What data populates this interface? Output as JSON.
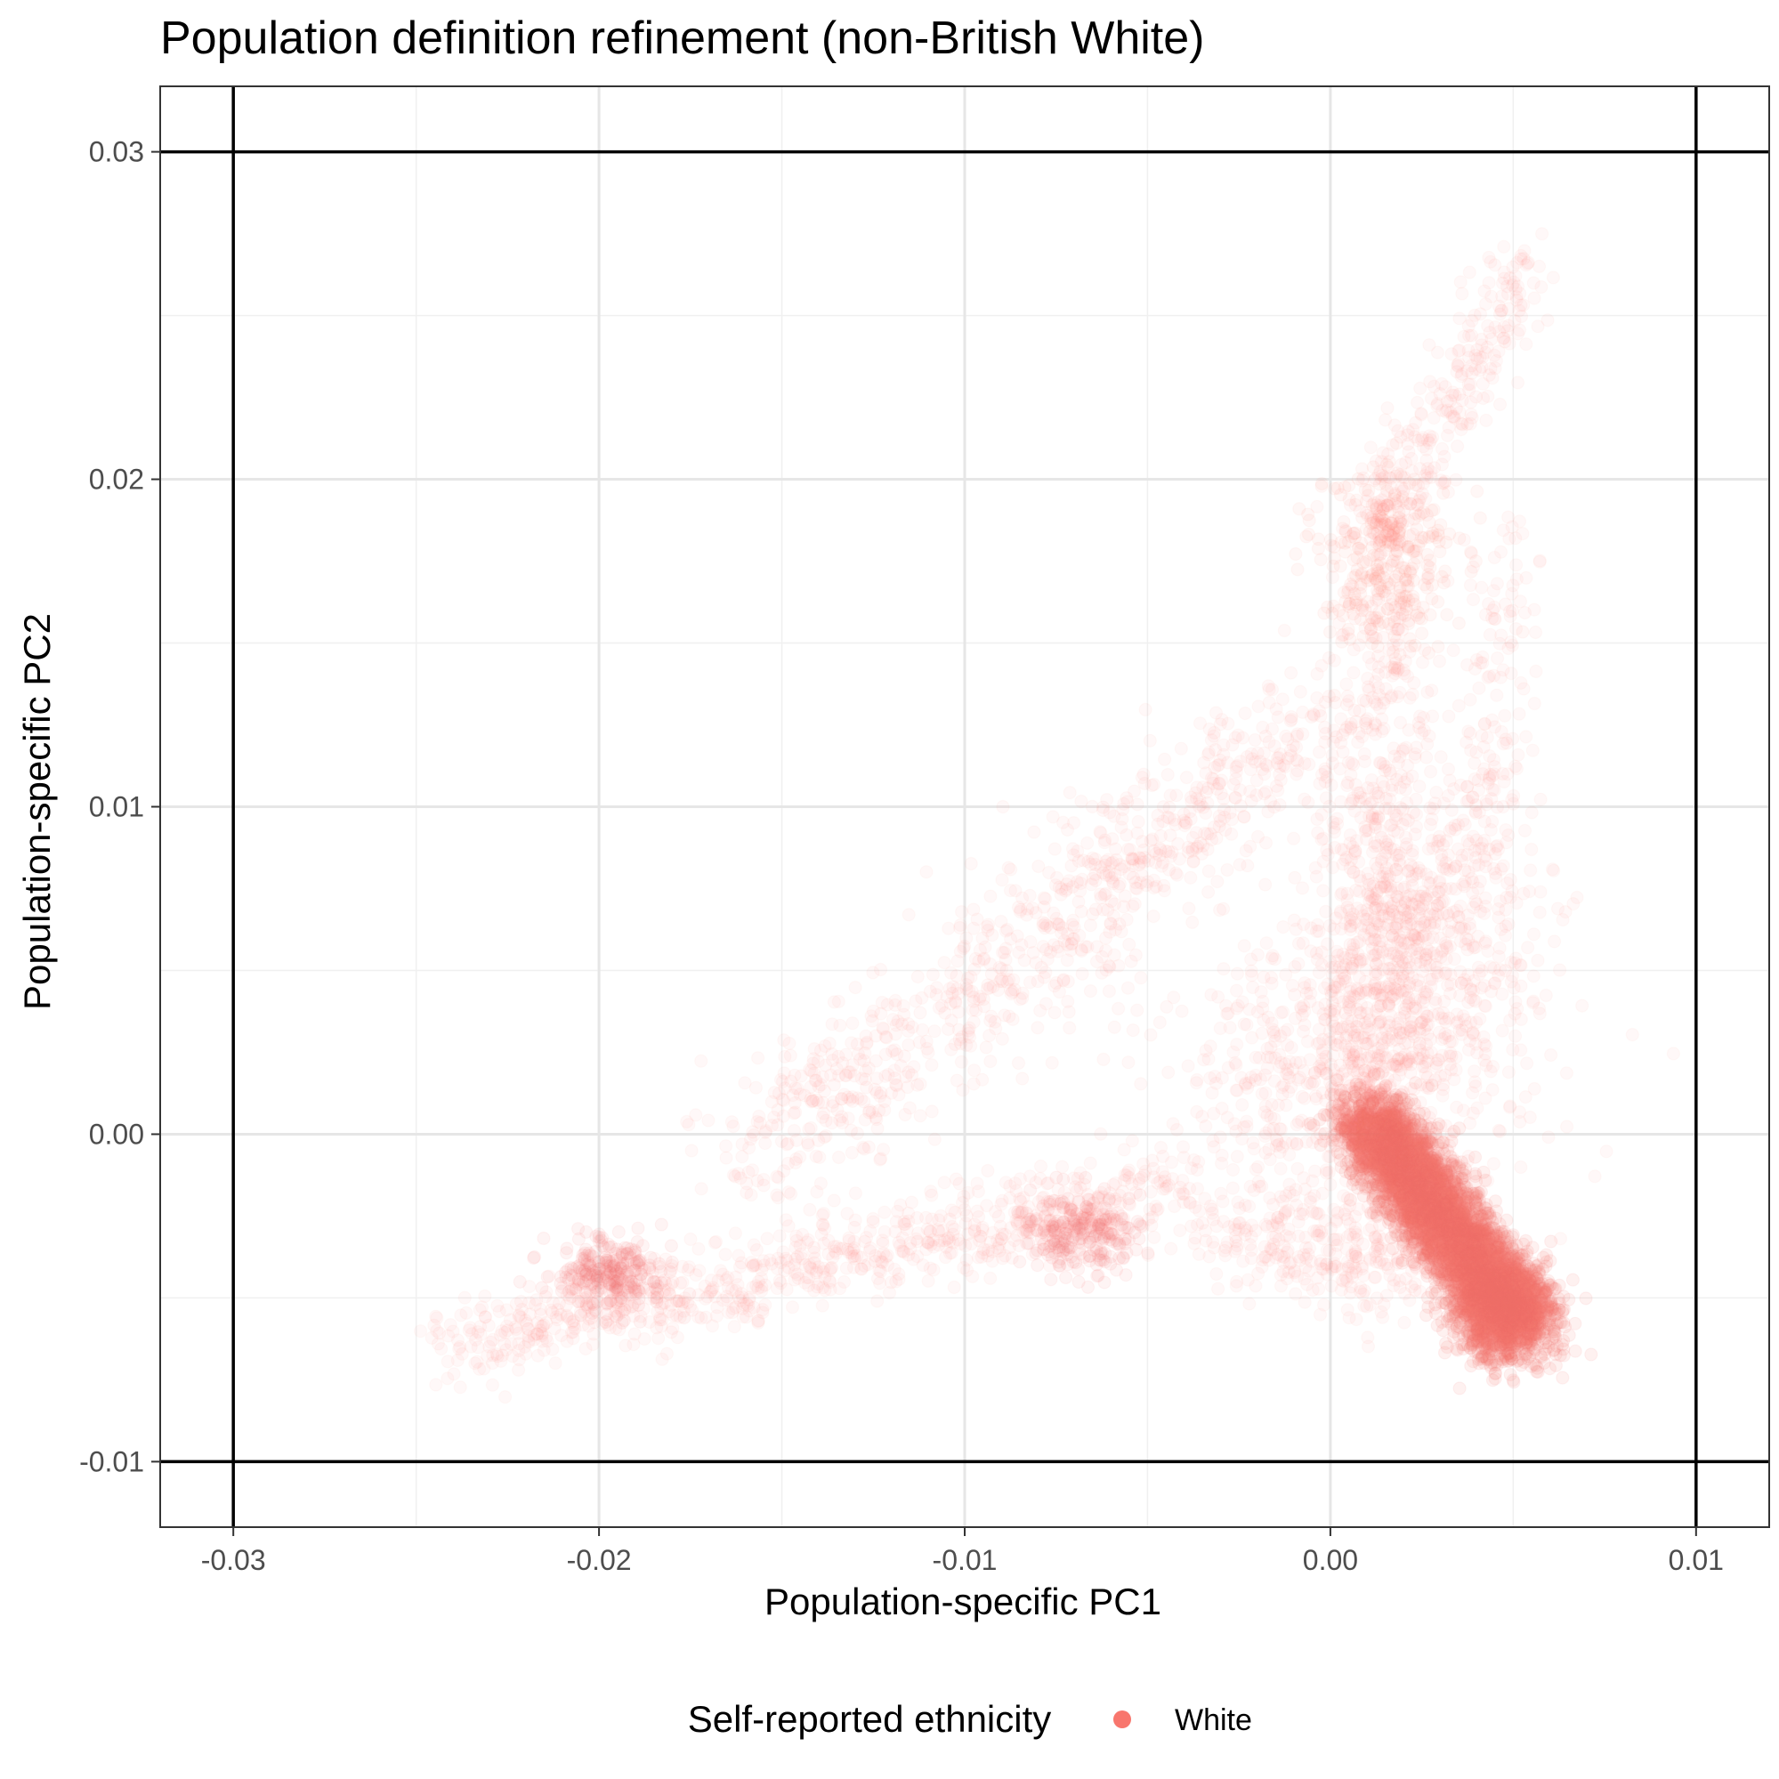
{
  "chart_data": {
    "type": "scatter",
    "title": "Population definition refinement (non-British White)",
    "xlabel": "Population-specific PC1",
    "ylabel": "Population-specific PC2",
    "xlim": [
      -0.032,
      0.012
    ],
    "ylim": [
      -0.012,
      0.032
    ],
    "x_ticks": [
      -0.03,
      -0.02,
      -0.01,
      0.0,
      0.01
    ],
    "x_tick_labels": [
      "-0.03",
      "-0.02",
      "-0.01",
      "0.00",
      "0.01"
    ],
    "y_ticks": [
      -0.01,
      0.0,
      0.01,
      0.02,
      0.03
    ],
    "y_tick_labels": [
      "-0.01",
      "0.00",
      "0.01",
      "0.02",
      "0.03"
    ],
    "grid": true,
    "reference_lines": {
      "x": [
        -0.03,
        0.01
      ],
      "y": [
        -0.01,
        0.03
      ]
    },
    "point_color": "#f8766d",
    "legend": {
      "title": "Self-reported ethnicity",
      "position": "bottom",
      "entries": [
        {
          "label": "White",
          "color": "#f8766d"
        }
      ]
    },
    "series": [
      {
        "name": "White",
        "clusters": [
          {
            "type": "line",
            "from": [
              0.001,
              0.0005
            ],
            "to": [
              0.005,
              -0.0055
            ],
            "n": 5200,
            "width": 0.0009,
            "alpha": 0.1
          },
          {
            "type": "blob",
            "center": [
              0.0048,
              -0.0055
            ],
            "sd": [
              0.0007,
              0.0007
            ],
            "n": 1200,
            "alpha": 0.1
          },
          {
            "type": "blob",
            "center": [
              -0.0197,
              -0.0043
            ],
            "sd": [
              0.0007,
              0.0006
            ],
            "n": 260,
            "alpha": 0.08
          },
          {
            "type": "blob",
            "center": [
              -0.007,
              -0.003
            ],
            "sd": [
              0.0008,
              0.0006
            ],
            "n": 240,
            "alpha": 0.08
          },
          {
            "type": "blob",
            "center": [
              0.0015,
              0.0175
            ],
            "sd": [
              0.001,
              0.0014
            ],
            "n": 320,
            "alpha": 0.06
          },
          {
            "type": "blob",
            "center": [
              0.0025,
              0.006
            ],
            "sd": [
              0.0015,
              0.0025
            ],
            "n": 600,
            "alpha": 0.05
          },
          {
            "type": "blob",
            "center": [
              0.0,
              0.002
            ],
            "sd": [
              0.0025,
              0.0022
            ],
            "n": 600,
            "alpha": 0.05
          },
          {
            "type": "line",
            "from": [
              -0.024,
              -0.0065
            ],
            "to": [
              -0.004,
              -0.0015
            ],
            "n": 800,
            "width": 0.0011,
            "alpha": 0.05
          },
          {
            "type": "line",
            "from": [
              -0.016,
              -0.001
            ],
            "to": [
              0.0,
              0.013
            ],
            "n": 900,
            "width": 0.0018,
            "alpha": 0.05
          },
          {
            "type": "line",
            "from": [
              0.001,
              0.018
            ],
            "to": [
              0.0055,
              0.0265
            ],
            "n": 300,
            "width": 0.0009,
            "alpha": 0.05
          },
          {
            "type": "line",
            "from": [
              0.001,
              0.0
            ],
            "to": [
              0.0015,
              0.016
            ],
            "n": 500,
            "width": 0.0012,
            "alpha": 0.05
          },
          {
            "type": "line",
            "from": [
              -0.003,
              -0.003
            ],
            "to": [
              0.002,
              -0.004
            ],
            "n": 300,
            "width": 0.0014,
            "alpha": 0.05
          },
          {
            "type": "line",
            "from": [
              0.004,
              0.008
            ],
            "to": [
              0.005,
              0.018
            ],
            "n": 140,
            "width": 0.0009,
            "alpha": 0.05
          }
        ]
      }
    ]
  }
}
